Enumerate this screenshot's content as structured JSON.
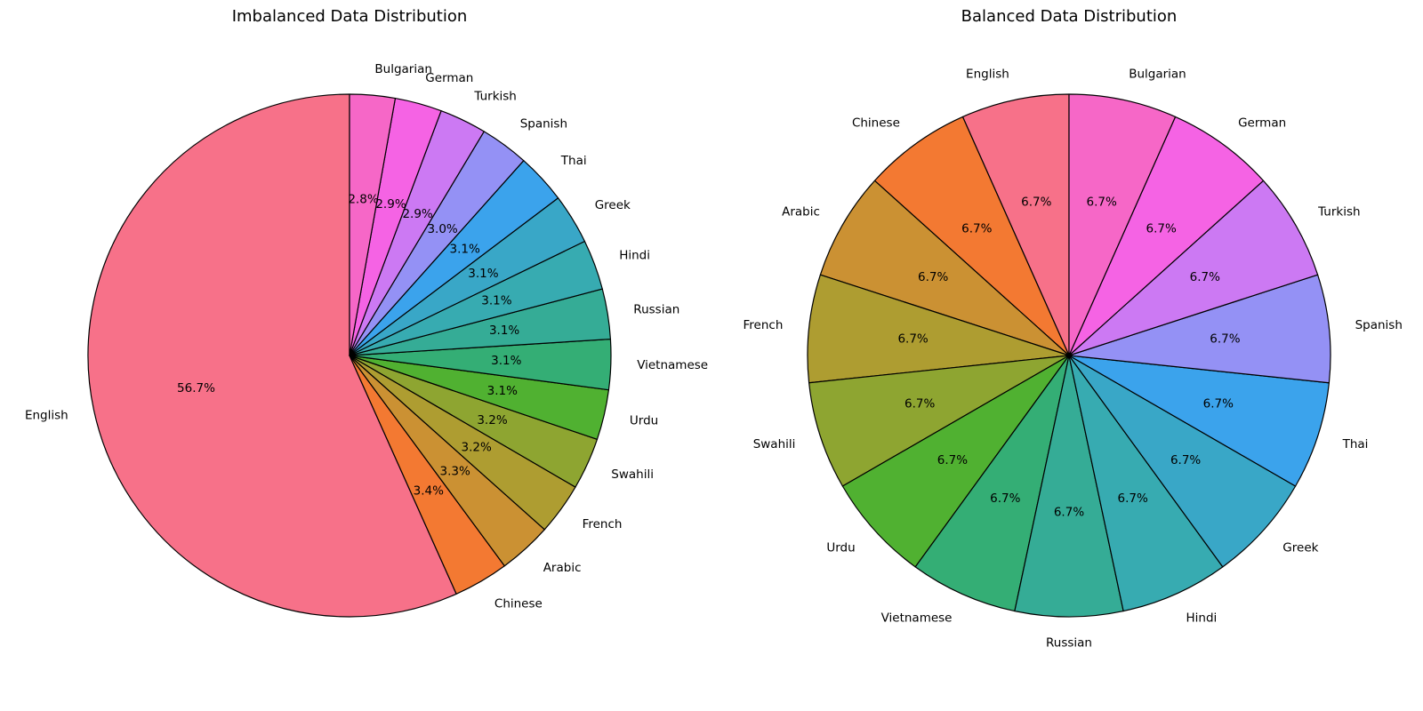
{
  "chart_data": [
    {
      "type": "pie",
      "title": "Imbalanced Data Distribution",
      "start_angle_deg": 90,
      "direction": "counterclockwise",
      "autopct": true,
      "categories": [
        "English",
        "Chinese",
        "Arabic",
        "French",
        "Swahili",
        "Urdu",
        "Vietnamese",
        "Russian",
        "Hindi",
        "Greek",
        "Thai",
        "Spanish",
        "Turkish",
        "German",
        "Bulgarian"
      ],
      "values": [
        56.7,
        3.4,
        3.3,
        3.2,
        3.2,
        3.1,
        3.1,
        3.1,
        3.1,
        3.1,
        3.1,
        3.0,
        2.9,
        2.9,
        2.8
      ],
      "pct_labels": [
        "56.7%",
        "3.4%",
        "3.3%",
        "3.2%",
        "3.2%",
        "3.1%",
        "3.1%",
        "3.1%",
        "3.1%",
        "3.1%",
        "3.1%",
        "3.0%",
        "2.9%",
        "2.9%",
        "2.8%"
      ]
    },
    {
      "type": "pie",
      "title": "Balanced Data Distribution",
      "start_angle_deg": 90,
      "direction": "counterclockwise",
      "autopct": true,
      "categories": [
        "English",
        "Chinese",
        "Arabic",
        "French",
        "Swahili",
        "Urdu",
        "Vietnamese",
        "Russian",
        "Hindi",
        "Greek",
        "Thai",
        "Spanish",
        "Turkish",
        "German",
        "Bulgarian"
      ],
      "values": [
        6.7,
        6.7,
        6.7,
        6.7,
        6.7,
        6.7,
        6.7,
        6.7,
        6.7,
        6.7,
        6.7,
        6.7,
        6.7,
        6.7,
        6.7
      ],
      "pct_labels": [
        "6.7%",
        "6.7%",
        "6.7%",
        "6.7%",
        "6.7%",
        "6.7%",
        "6.7%",
        "6.7%",
        "6.7%",
        "6.7%",
        "6.7%",
        "6.7%",
        "6.7%",
        "6.7%",
        "6.7%"
      ]
    }
  ],
  "palette": [
    "#f77189",
    "#f37932",
    "#cb9133",
    "#ae9d31",
    "#8ea531",
    "#50b131",
    "#34ae75",
    "#35ac96",
    "#37abb1",
    "#39a7c7",
    "#3ba3ec",
    "#9491f5",
    "#cc79f3",
    "#f563e4",
    "#f667c7"
  ]
}
